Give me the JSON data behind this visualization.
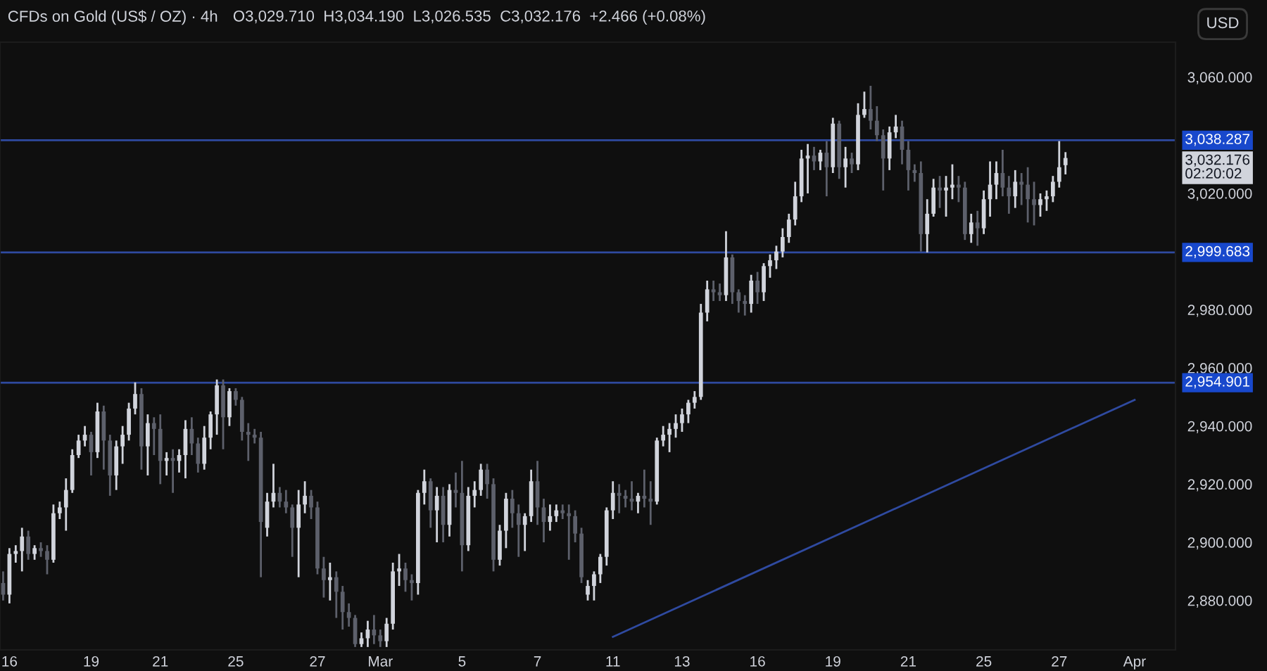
{
  "chart_data": {
    "type": "candlestick",
    "title": "CFDs on Gold (US$ / OZ) · 4h",
    "subtitle": "O3,029.710  H3,034.190  L3,026.535  C3,032.176  +2.466 (+0.08%)",
    "categories": [
      null,
      "16",
      null,
      null,
      null,
      null,
      null,
      null,
      null,
      null,
      null,
      null,
      null,
      null,
      "19",
      null,
      null,
      null,
      null,
      null,
      null,
      null,
      null,
      null,
      null,
      "21",
      null,
      null,
      null,
      null,
      null,
      null,
      null,
      null,
      null,
      null,
      null,
      "25",
      null,
      null,
      null,
      null,
      null,
      null,
      null,
      null,
      null,
      null,
      null,
      null,
      "27",
      null,
      null,
      null,
      null,
      null,
      null,
      null,
      null,
      null,
      "Mar",
      null,
      null,
      null,
      null,
      null,
      null,
      null,
      null,
      null,
      null,
      null,
      null,
      "5",
      null,
      null,
      null,
      null,
      null,
      null,
      null,
      null,
      null,
      null,
      null,
      "7",
      null,
      null,
      null,
      null,
      null,
      null,
      null,
      null,
      null,
      null,
      null,
      "11",
      null,
      null,
      null,
      null,
      null,
      null,
      null,
      null,
      null,
      null,
      "13",
      null,
      null,
      null,
      null,
      null,
      null,
      null,
      null,
      null,
      null,
      null,
      "16",
      null,
      null,
      null,
      null,
      null,
      null,
      null,
      null,
      null,
      null,
      null,
      "19",
      null,
      null,
      null,
      null,
      null,
      null,
      null,
      null,
      null,
      null,
      null,
      "21",
      null,
      null,
      null,
      null,
      null,
      null,
      null,
      null,
      null,
      null,
      null,
      "25",
      null,
      null,
      null,
      null,
      null,
      null,
      null,
      null,
      null,
      null,
      null,
      "27",
      null,
      null,
      null,
      null,
      null,
      null,
      null,
      null,
      null,
      null,
      null,
      "Apr",
      null,
      null,
      null,
      null,
      null,
      null
    ],
    "ohlc": [
      [
        2886,
        2890,
        2880,
        2882
      ],
      [
        2882,
        2898,
        2879,
        2896
      ],
      [
        2896,
        2899,
        2893,
        2897
      ],
      [
        2897,
        2905,
        2890,
        2902
      ],
      [
        2902,
        2904,
        2894,
        2896
      ],
      [
        2896,
        2899,
        2894,
        2898
      ],
      [
        2898,
        2900,
        2895,
        2897
      ],
      [
        2897,
        2899,
        2889,
        2894
      ],
      [
        2894,
        2913,
        2893,
        2910
      ],
      [
        2910,
        2914,
        2908,
        2912
      ],
      [
        2912,
        2922,
        2904,
        2918
      ],
      [
        2918,
        2932,
        2917,
        2930
      ],
      [
        2930,
        2937,
        2929,
        2935
      ],
      [
        2935,
        2940,
        2933,
        2937
      ],
      [
        2937,
        2938,
        2923,
        2931
      ],
      [
        2931,
        2948,
        2929,
        2945
      ],
      [
        2945,
        2947,
        2925,
        2935
      ],
      [
        2935,
        2937,
        2916,
        2923
      ],
      [
        2923,
        2935,
        2918,
        2933
      ],
      [
        2933,
        2940,
        2927,
        2937
      ],
      [
        2937,
        2948,
        2935,
        2946
      ],
      [
        2946,
        2955,
        2944,
        2951
      ],
      [
        2951,
        2953,
        2925,
        2933
      ],
      [
        2933,
        2944,
        2923,
        2941
      ],
      [
        2941,
        2943,
        2930,
        2939
      ],
      [
        2939,
        2944,
        2920,
        2928
      ],
      [
        2928,
        2931,
        2923,
        2929
      ],
      [
        2929,
        2932,
        2917,
        2928
      ],
      [
        2928,
        2932,
        2924,
        2930
      ],
      [
        2930,
        2942,
        2922,
        2939
      ],
      [
        2939,
        2943,
        2930,
        2934
      ],
      [
        2934,
        2936,
        2924,
        2927
      ],
      [
        2927,
        2940,
        2925,
        2936
      ],
      [
        2936,
        2945,
        2932,
        2944
      ],
      [
        2944,
        2956,
        2937,
        2954
      ],
      [
        2954,
        2956,
        2932,
        2943
      ],
      [
        2943,
        2953,
        2940,
        2952
      ],
      [
        2952,
        2953,
        2947,
        2949
      ],
      [
        2949,
        2950,
        2935,
        2938
      ],
      [
        2938,
        2941,
        2928,
        2937
      ],
      [
        2937,
        2939,
        2934,
        2936
      ],
      [
        2936,
        2938,
        2888,
        2907
      ],
      [
        2905,
        2917,
        2902,
        2914
      ],
      [
        2914,
        2927,
        2912,
        2917
      ],
      [
        2917,
        2919,
        2912,
        2914
      ],
      [
        2914,
        2918,
        2910,
        2912
      ],
      [
        2912,
        2913,
        2895,
        2905
      ],
      [
        2905,
        2918,
        2888,
        2913
      ],
      [
        2913,
        2921,
        2910,
        2916
      ],
      [
        2916,
        2918,
        2908,
        2912
      ],
      [
        2912,
        2914,
        2889,
        2891
      ],
      [
        2891,
        2895,
        2881,
        2887
      ],
      [
        2887,
        2893,
        2880,
        2888
      ],
      [
        2888,
        2890,
        2874,
        2883
      ],
      [
        2883,
        2885,
        2870,
        2876
      ],
      [
        2876,
        2879,
        2871,
        2874
      ],
      [
        2874,
        2875,
        2864,
        2865
      ],
      [
        2865,
        2869,
        2864,
        2867
      ],
      [
        2867,
        2873,
        2864,
        2870
      ],
      [
        2870,
        2875,
        2865,
        2868
      ],
      [
        2868,
        2870,
        2864,
        2866
      ],
      [
        2866,
        2874,
        2864,
        2872
      ],
      [
        2872,
        2893,
        2870,
        2890
      ],
      [
        2890,
        2896,
        2885,
        2891
      ],
      [
        2891,
        2893,
        2883,
        2887
      ],
      [
        2887,
        2889,
        2880,
        2886
      ],
      [
        2886,
        2918,
        2882,
        2917
      ],
      [
        2917,
        2925,
        2913,
        2921
      ],
      [
        2921,
        2922,
        2905,
        2911
      ],
      [
        2911,
        2919,
        2900,
        2916
      ],
      [
        2916,
        2919,
        2900,
        2906
      ],
      [
        2906,
        2920,
        2902,
        2918
      ],
      [
        2918,
        2924,
        2912,
        2917
      ],
      [
        2917,
        2928,
        2890,
        2899
      ],
      [
        2899,
        2919,
        2897,
        2916
      ],
      [
        2916,
        2921,
        2912,
        2918
      ],
      [
        2918,
        2927,
        2916,
        2925
      ],
      [
        2925,
        2927,
        2915,
        2920
      ],
      [
        2920,
        2922,
        2890,
        2894
      ],
      [
        2894,
        2906,
        2892,
        2904
      ],
      [
        2904,
        2917,
        2898,
        2915
      ],
      [
        2915,
        2918,
        2905,
        2910
      ],
      [
        2910,
        2913,
        2895,
        2906
      ],
      [
        2906,
        2910,
        2897,
        2909
      ],
      [
        2909,
        2925,
        2907,
        2921
      ],
      [
        2921,
        2928,
        2906,
        2912
      ],
      [
        2912,
        2915,
        2900,
        2907
      ],
      [
        2907,
        2913,
        2904,
        2909
      ],
      [
        2909,
        2913,
        2907,
        2911
      ],
      [
        2911,
        2913,
        2908,
        2910
      ],
      [
        2910,
        2913,
        2894,
        2909
      ],
      [
        2909,
        2911,
        2900,
        2903
      ],
      [
        2903,
        2905,
        2886,
        2888
      ],
      [
        2882,
        2887,
        2880,
        2885
      ],
      [
        2885,
        2890,
        2880,
        2889
      ],
      [
        2889,
        2896,
        2886,
        2895
      ],
      [
        2895,
        2912,
        2892,
        2911
      ],
      [
        2911,
        2921,
        2908,
        2917
      ],
      [
        2917,
        2920,
        2910,
        2916
      ],
      [
        2916,
        2918,
        2912,
        2915
      ],
      [
        2915,
        2921,
        2911,
        2914
      ],
      [
        2914,
        2917,
        2910,
        2916
      ],
      [
        2916,
        2925,
        2912,
        2915
      ],
      [
        2915,
        2921,
        2906,
        2914
      ],
      [
        2914,
        2936,
        2913,
        2935
      ],
      [
        2935,
        2940,
        2933,
        2937
      ],
      [
        2937,
        2941,
        2931,
        2939
      ],
      [
        2939,
        2944,
        2936,
        2941
      ],
      [
        2941,
        2946,
        2938,
        2944
      ],
      [
        2944,
        2949,
        2941,
        2948
      ],
      [
        2948,
        2952,
        2946,
        2950
      ],
      [
        2950,
        2982,
        2949,
        2979
      ],
      [
        2979,
        2990,
        2976,
        2987
      ],
      [
        2987,
        2990,
        2983,
        2986
      ],
      [
        2986,
        2989,
        2983,
        2985
      ],
      [
        2985,
        3007,
        2983,
        2998
      ],
      [
        2998,
        2999,
        2982,
        2986
      ],
      [
        2986,
        2987,
        2979,
        2983
      ],
      [
        2983,
        2985,
        2978,
        2982
      ],
      [
        2982,
        2992,
        2979,
        2990
      ],
      [
        2990,
        2993,
        2982,
        2986
      ],
      [
        2986,
        2996,
        2983,
        2995
      ],
      [
        2995,
        2999,
        2991,
        2997
      ],
      [
        2997,
        3002,
        2994,
        3000
      ],
      [
        3000,
        3008,
        2998,
        3005
      ],
      [
        3005,
        3013,
        3003,
        3011
      ],
      [
        3011,
        3024,
        3009,
        3019
      ],
      [
        3019,
        3035,
        3017,
        3032
      ],
      [
        3032,
        3037,
        3020,
        3033
      ],
      [
        3033,
        3036,
        3028,
        3031
      ],
      [
        3031,
        3035,
        3028,
        3034
      ],
      [
        3034,
        3038,
        3019,
        3029
      ],
      [
        3029,
        3046,
        3027,
        3044
      ],
      [
        3044,
        3045,
        3025,
        3029
      ],
      [
        3029,
        3036,
        3022,
        3032
      ],
      [
        3032,
        3034,
        3027,
        3030
      ],
      [
        3030,
        3051,
        3028,
        3047
      ],
      [
        3047,
        3055,
        3046,
        3049
      ],
      [
        3049,
        3057,
        3042,
        3045
      ],
      [
        3045,
        3050,
        3038,
        3040
      ],
      [
        3040,
        3042,
        3021,
        3032
      ],
      [
        3032,
        3043,
        3028,
        3041
      ],
      [
        3041,
        3047,
        3039,
        3043
      ],
      [
        3043,
        3045,
        3030,
        3035
      ],
      [
        3035,
        3038,
        3021,
        3028
      ],
      [
        3028,
        3030,
        3024,
        3027
      ],
      [
        3027,
        3031,
        3000,
        3006
      ],
      [
        3006,
        3018,
        2999.7,
        3013
      ],
      [
        3013,
        3025,
        3012,
        3022
      ],
      [
        3022,
        3026,
        3015,
        3021
      ],
      [
        3021,
        3026,
        3012,
        3022
      ],
      [
        3022,
        3030,
        3018,
        3023
      ],
      [
        3023,
        3026,
        3017,
        3022
      ],
      [
        3022,
        3024,
        3004,
        3006
      ],
      [
        3006,
        3013,
        3003,
        3010
      ],
      [
        3010,
        3014,
        3002,
        3008
      ],
      [
        3008,
        3021,
        3006,
        3018
      ],
      [
        3018,
        3031,
        3012,
        3023
      ],
      [
        3023,
        3031,
        3018,
        3027
      ],
      [
        3027,
        3035,
        3019,
        3022
      ],
      [
        3022,
        3026,
        3013,
        3019
      ],
      [
        3019,
        3028,
        3015,
        3024
      ],
      [
        3024,
        3027,
        3016,
        3023
      ],
      [
        3023,
        3029,
        3010,
        3018
      ],
      [
        3018,
        3024,
        3009,
        3016
      ],
      [
        3016,
        3020,
        3012,
        3018
      ],
      [
        3018,
        3021,
        3014,
        3019
      ],
      [
        3019,
        3026,
        3017,
        3024
      ],
      [
        3024,
        3038,
        3022,
        3029
      ],
      [
        3029.71,
        3034.19,
        3026.535,
        3032.176
      ],
      null,
      null,
      null,
      null,
      null,
      null,
      null,
      null,
      null,
      null,
      null,
      null,
      null,
      null,
      null,
      null,
      null
    ],
    "colors": [
      "#5d606b",
      "#d1d4dc",
      "#d1d4dc",
      "#d1d4dc",
      "#5d606b",
      "#d1d4dc",
      "#5d606b",
      "#5d606b",
      "#d1d4dc",
      "#d1d4dc",
      "#d1d4dc",
      "#d1d4dc",
      "#d1d4dc",
      "#d1d4dc",
      "#5d606b",
      "#d1d4dc",
      "#5d606b",
      "#5d606b",
      "#d1d4dc",
      "#d1d4dc",
      "#d1d4dc",
      "#d1d4dc",
      "#5d606b",
      "#d1d4dc",
      "#5d606b",
      "#5d606b",
      "#d1d4dc",
      "#5d606b",
      "#d1d4dc",
      "#d1d4dc",
      "#5d606b",
      "#5d606b",
      "#d1d4dc",
      "#d1d4dc",
      "#d1d4dc",
      "#5d606b",
      "#d1d4dc",
      "#5d606b",
      "#5d606b",
      "#5d606b",
      "#5d606b",
      "#5d606b",
      "#d1d4dc",
      "#d1d4dc",
      "#5d606b",
      "#5d606b",
      "#5d606b",
      "#d1d4dc",
      "#d1d4dc",
      "#5d606b",
      "#5d606b",
      "#5d606b",
      "#d1d4dc",
      "#5d606b",
      "#5d606b",
      "#5d606b",
      "#5d606b",
      "#d1d4dc",
      "#d1d4dc",
      "#5d606b",
      "#5d606b",
      "#d1d4dc",
      "#d1d4dc",
      "#d1d4dc",
      "#5d606b",
      "#5d606b",
      "#d1d4dc",
      "#d1d4dc",
      "#5d606b",
      "#d1d4dc",
      "#5d606b",
      "#d1d4dc",
      "#5d606b",
      "#5d606b",
      "#d1d4dc",
      "#d1d4dc",
      "#d1d4dc",
      "#5d606b",
      "#5d606b",
      "#d1d4dc",
      "#d1d4dc",
      "#5d606b",
      "#5d606b",
      "#d1d4dc",
      "#d1d4dc",
      "#5d606b",
      "#5d606b",
      "#d1d4dc",
      "#d1d4dc",
      "#5d606b",
      "#5d606b",
      "#5d606b",
      "#5d606b",
      "#d1d4dc",
      "#d1d4dc",
      "#d1d4dc",
      "#d1d4dc",
      "#d1d4dc",
      "#5d606b",
      "#5d606b",
      "#5d606b",
      "#d1d4dc",
      "#5d606b",
      "#5d606b",
      "#d1d4dc",
      "#d1d4dc",
      "#d1d4dc",
      "#d1d4dc",
      "#d1d4dc",
      "#d1d4dc",
      "#d1d4dc",
      "#d1d4dc",
      "#d1d4dc",
      "#5d606b",
      "#5d606b",
      "#d1d4dc",
      "#5d606b",
      "#5d606b",
      "#5d606b",
      "#d1d4dc",
      "#5d606b",
      "#d1d4dc",
      "#d1d4dc",
      "#d1d4dc",
      "#d1d4dc",
      "#d1d4dc",
      "#d1d4dc",
      "#d1d4dc",
      "#d1d4dc",
      "#5d606b",
      "#d1d4dc",
      "#5d606b",
      "#d1d4dc",
      "#5d606b",
      "#d1d4dc",
      "#5d606b",
      "#d1d4dc",
      "#d1d4dc",
      "#5d606b",
      "#5d606b",
      "#5d606b",
      "#d1d4dc",
      "#d1d4dc",
      "#5d606b",
      "#5d606b",
      "#5d606b",
      "#5d606b",
      "#d1d4dc",
      "#d1d4dc",
      "#5d606b",
      "#d1d4dc",
      "#d1d4dc",
      "#5d606b",
      "#5d606b",
      "#d1d4dc",
      "#5d606b",
      "#d1d4dc",
      "#d1d4dc",
      "#d1d4dc",
      "#5d606b",
      "#5d606b",
      "#d1d4dc",
      "#5d606b",
      "#5d606b",
      "#5d606b",
      "#d1d4dc",
      "#d1d4dc",
      "#d1d4dc",
      "#d1d4dc",
      "#d1d4dc",
      null,
      null,
      null,
      null,
      null,
      null,
      null,
      null,
      null,
      null,
      null,
      null,
      null,
      null,
      null,
      null,
      null
    ],
    "series": [
      {
        "type": "line",
        "x": [
          "11",
          "Apr"
        ],
        "values": [
          2867.5,
          2949
        ],
        "color": "#2f4aa0"
      }
    ],
    "ylim": [
      2863,
      3072
    ],
    "yticks": [
      {
        "value": 2880,
        "label": "2,880.000"
      },
      {
        "value": 2900,
        "label": "2,900.000"
      },
      {
        "value": 2920,
        "label": "2,920.000"
      },
      {
        "value": 2940,
        "label": "2,940.000"
      },
      {
        "value": 2960,
        "label": "2,960.000"
      },
      {
        "value": 2980,
        "label": "2,980.000"
      },
      {
        "value": 3020,
        "label": "3,020.000"
      },
      {
        "value": 3060,
        "label": "3,060.000"
      }
    ],
    "ref_lines": [
      {
        "axis": "y",
        "value": 3038.287,
        "label": "3,038.287",
        "color": "#2f4aa0"
      },
      {
        "axis": "y",
        "value": 2999.683,
        "label": "2,999.683",
        "color": "#2f4aa0"
      },
      {
        "axis": "y",
        "value": 2954.901,
        "label": "2,954.901",
        "color": "#2f4aa0"
      }
    ],
    "annotations": [
      "3,032.176\n02:20:02",
      "USD"
    ],
    "grid": false
  }
}
